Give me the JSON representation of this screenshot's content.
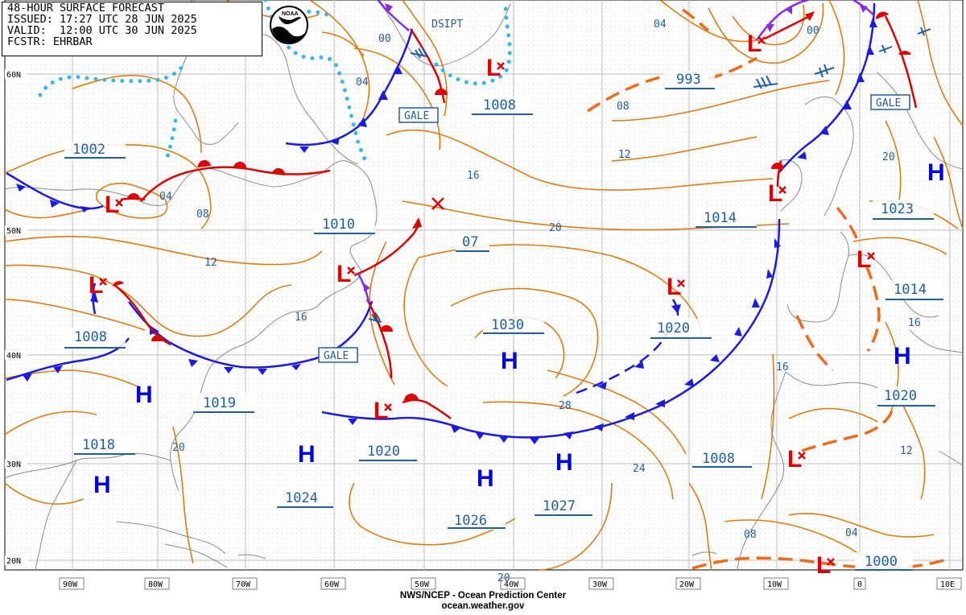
{
  "header": {
    "line1": "48-HOUR SURFACE FORECAST",
    "line2": "ISSUED: 17:27 UTC 28 JUN 2025",
    "line3": "VALID:  12:00 UTC 30 JUN 2025",
    "line4": "FCSTR: EHRBAR"
  },
  "logo_text": "NOAA",
  "credit": {
    "line1": "NWS/NCEP - Ocean Prediction Center",
    "line2": "ocean.weather.gov"
  },
  "colors": {
    "isobar": "#e07b10",
    "label": "#1f5fa6",
    "high": "#0000e6",
    "low": "#e00000",
    "cold_front": "#0000e6",
    "warm_front": "#e00000",
    "occluded": "#8a2be2",
    "ice": "#35b7ee",
    "grid": "#c8c8c8",
    "coast": "#888888"
  },
  "lat_labels": [
    "60N",
    "50N",
    "40N",
    "30N",
    "20N"
  ],
  "lon_labels": [
    "90W",
    "80W",
    "70W",
    "60W",
    "50W",
    "40W",
    "30W",
    "20W",
    "10W",
    "0",
    "10E"
  ],
  "pressure_labels": [
    "1002",
    "1010",
    "1008",
    "1008",
    "993",
    "1014",
    "1023",
    "07",
    "1030",
    "1020",
    "1014",
    "1019",
    "1018",
    "1020",
    "1024",
    "1026",
    "1027",
    "1008",
    "1020",
    "1000"
  ],
  "isobar_labels": [
    "00",
    "04",
    "04",
    "08",
    "12",
    "16",
    "20",
    "04",
    "00",
    "08",
    "12",
    "16",
    "20",
    "20",
    "16",
    "16",
    "28",
    "24",
    "12",
    "08",
    "04",
    "20"
  ],
  "gale_labels": [
    "GALE",
    "GALE",
    "GALE"
  ],
  "dsipt_label": "DSIPT"
}
